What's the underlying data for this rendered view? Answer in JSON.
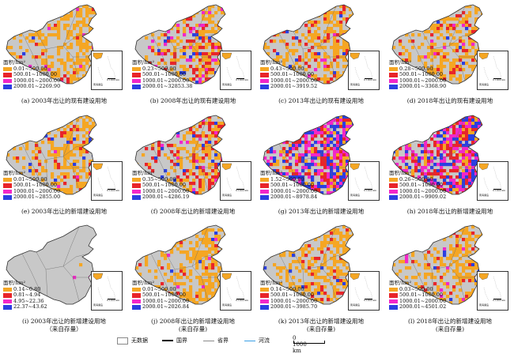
{
  "legend_title": "面积/hm²",
  "inset_label": "南海诸岛",
  "inset_scale": "0 1000 km",
  "colors": {
    "nodata": "#c8c8c8",
    "c1": "#f5a623",
    "c2": "#e8252a",
    "c3": "#f227c8",
    "c4": "#2b3fe0",
    "boundary": "#6b6b6b"
  },
  "panels": [
    {
      "caption": "(a) 2003年出让的现有建设用地",
      "caption2": "",
      "classes": [
        "0.01~500.00",
        "500.01~1000.00",
        "1000.01~2000.00",
        "2000.01~2269.90"
      ],
      "weights": [
        0.58,
        0.05,
        0.02,
        0.02
      ],
      "hue_bias": "low"
    },
    {
      "caption": "(b) 2008年出让的现有建设用地",
      "caption2": "",
      "classes": [
        "0.23~500.00",
        "500.01~1000.00",
        "1000.01~2000.00",
        "2000.01~32853.38"
      ],
      "weights": [
        0.5,
        0.2,
        0.05,
        0.05
      ],
      "hue_bias": "mid"
    },
    {
      "caption": "(c) 2013年出让的现有建设用地",
      "caption2": "",
      "classes": [
        "0.43~500.00",
        "500.01~1000.00",
        "1000.01~2000.00",
        "2000.01~3919.52"
      ],
      "weights": [
        0.55,
        0.15,
        0.03,
        0.02
      ],
      "hue_bias": "mid"
    },
    {
      "caption": "(d) 2018年出让的现有建设用地",
      "caption2": "",
      "classes": [
        "0.28~500.00",
        "500.01~1000.00",
        "1000.01~2000.00",
        "2000.01~3368.90"
      ],
      "weights": [
        0.55,
        0.15,
        0.03,
        0.02
      ],
      "hue_bias": "mid"
    },
    {
      "caption": "(e) 2003年出让的新增建设用地",
      "caption2": "",
      "classes": [
        "0.01~500.00",
        "500.01~1000.00",
        "1000.01~2000.00",
        "2000.01~2855.00"
      ],
      "weights": [
        0.55,
        0.12,
        0.02,
        0.03
      ],
      "hue_bias": "low"
    },
    {
      "caption": "(f) 2008年出让的新增建设用地",
      "caption2": "",
      "classes": [
        "0.35~500.00",
        "500.01~1000.00",
        "1000.01~2000.00",
        "2000.01~4286.19"
      ],
      "weights": [
        0.45,
        0.25,
        0.06,
        0.06
      ],
      "hue_bias": "mid"
    },
    {
      "caption": "(g) 2013年出让的新增建设用地",
      "caption2": "",
      "classes": [
        "1.52~500.00",
        "500.01~1000.00",
        "1000.01~2000.00",
        "2000.01~8978.84"
      ],
      "weights": [
        0.15,
        0.25,
        0.3,
        0.3
      ],
      "hue_bias": "high"
    },
    {
      "caption": "(h) 2018年出让的新增建设用地",
      "caption2": "",
      "classes": [
        "0.26~500.00",
        "500.01~1000.00",
        "1000.01~2000.00",
        "2000.01~9909.02"
      ],
      "weights": [
        0.15,
        0.3,
        0.3,
        0.25
      ],
      "hue_bias": "high"
    },
    {
      "caption": "(i) 2003年出让的新增建设用地",
      "caption2": "（来自存量）",
      "classes": [
        "0.14~0.80",
        "0.81~4.94",
        "4.95~22.36",
        "22.37~43.62"
      ],
      "weights": [
        0.08,
        0.04,
        0.02,
        0.01
      ],
      "hue_bias": "sparse"
    },
    {
      "caption": "(j) 2008年出让的新增建设用地",
      "caption2": "(来自存量)",
      "classes": [
        "0.01~500.00",
        "500.01~1000.00",
        "1000.01~2000.00",
        "2000.01~2026.84"
      ],
      "weights": [
        0.62,
        0.05,
        0.01,
        0.01
      ],
      "hue_bias": "low"
    },
    {
      "caption": "(k) 2013年出让的新增建设用地",
      "caption2": "(来自存量)",
      "classes": [
        "0.14~500.00",
        "500.01~1000.00",
        "1000.01~2000.00",
        "2000.01~3985.70"
      ],
      "weights": [
        0.6,
        0.08,
        0.02,
        0.02
      ],
      "hue_bias": "low"
    },
    {
      "caption": "(l) 2018年出让的新增建设用地",
      "caption2": "(来自存量)",
      "classes": [
        "0.03~500.00",
        "500.01~1000.00",
        "1000.01~2000.00",
        "2000.01~4501.02"
      ],
      "weights": [
        0.6,
        0.1,
        0.02,
        0.02
      ],
      "hue_bias": "low"
    }
  ],
  "bottom_legend": {
    "nodata_label": "无数据",
    "national_label": "国界",
    "provincial_label": "省界",
    "river_label": "河流",
    "scale_label": "0  1000 km"
  }
}
